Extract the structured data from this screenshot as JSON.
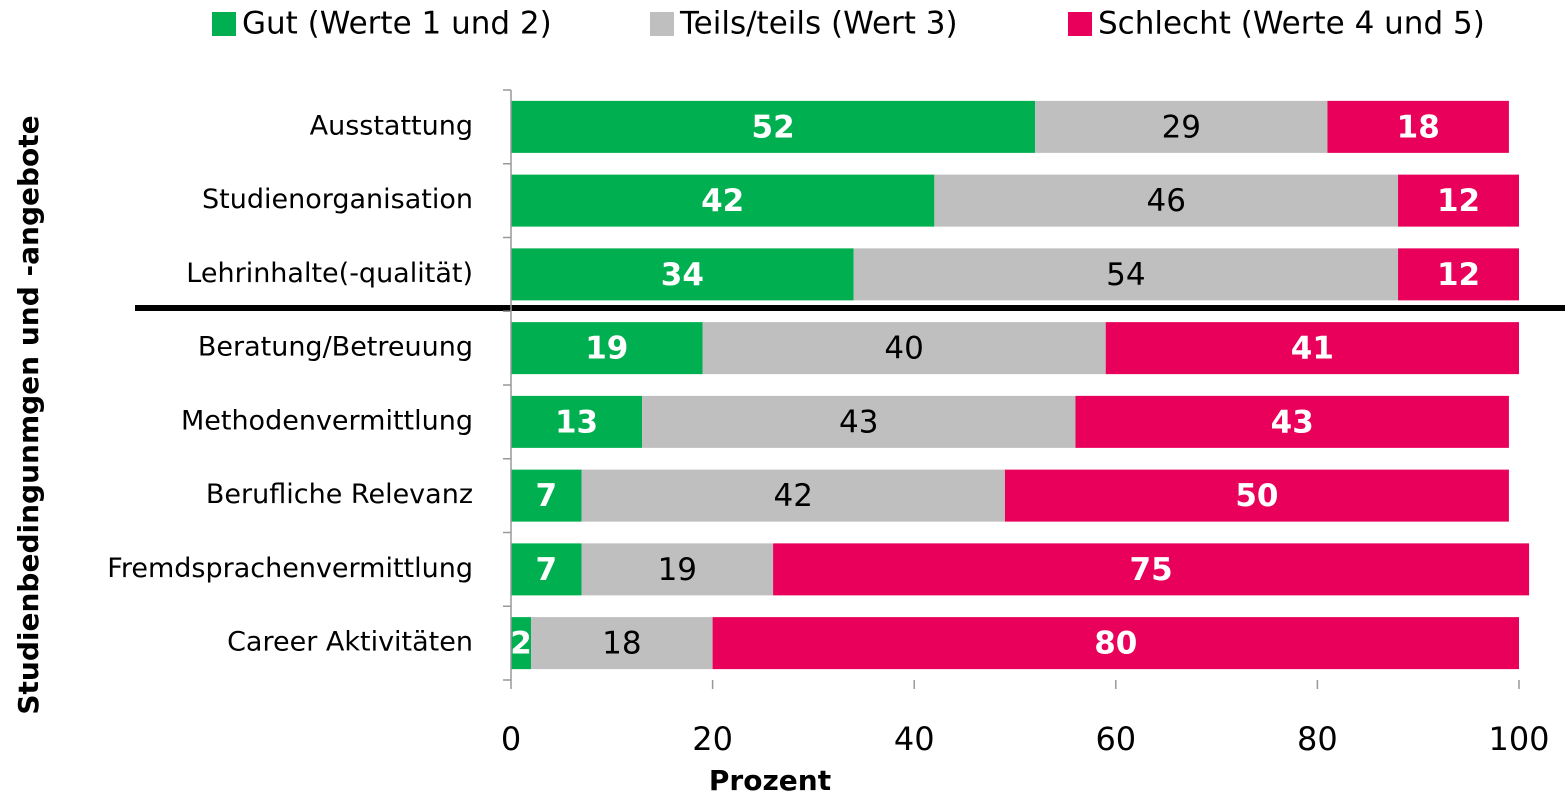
{
  "chart_data": {
    "type": "stacked_barh",
    "categories": [
      "Ausstattung",
      "Studienorganisation",
      "Lehrinhalte(-qualität)",
      "Beratung/Betreuung",
      "Methodenvermittlung",
      "Berufliche Relevanz",
      "Fremdsprachenvermittlung",
      "Career Aktivitäten"
    ],
    "series": [
      {
        "name": "Gut (Werte 1 und 2)",
        "color": "#00b050",
        "values": [
          52,
          42,
          34,
          19,
          13,
          7,
          7,
          2
        ]
      },
      {
        "name": "Teils/teils (Wert 3)",
        "color": "#bfbfbf",
        "values": [
          29,
          46,
          54,
          40,
          43,
          42,
          19,
          18
        ]
      },
      {
        "name": "Schlecht (Werte 4 und 5)",
        "color": "#e8005a",
        "values": [
          18,
          12,
          12,
          41,
          43,
          50,
          75,
          80
        ]
      }
    ],
    "x_label": "Prozent",
    "y_label": "Studienbedingunmgen und -angebote",
    "xlim": [
      0,
      100
    ],
    "xticks": [
      0,
      20,
      40,
      60,
      80,
      100
    ],
    "legend": "top"
  }
}
